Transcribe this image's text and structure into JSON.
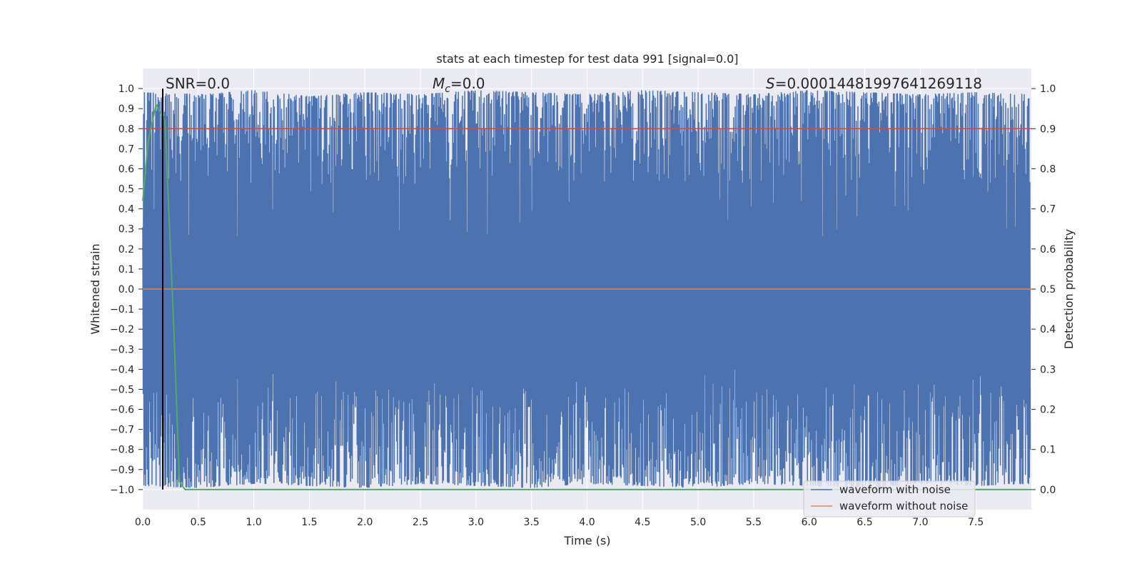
{
  "chart_data": {
    "type": "line",
    "title": "stats at each timestep for test data 991 [signal=0.0]",
    "xlabel": "Time (s)",
    "ylabel": "Whitened strain",
    "ylabel_right": "Detection probability",
    "xlim": [
      0.0,
      8.0
    ],
    "ylim": [
      -1.1,
      1.1
    ],
    "ylim_right": [
      -0.05,
      1.05
    ],
    "x_ticks": [
      0.0,
      0.5,
      1.0,
      1.5,
      2.0,
      2.5,
      3.0,
      3.5,
      4.0,
      4.5,
      5.0,
      5.5,
      6.0,
      6.5,
      7.0,
      7.5
    ],
    "x_tick_labels": [
      "0.0",
      "0.5",
      "1.0",
      "1.5",
      "2.0",
      "2.5",
      "3.0",
      "3.5",
      "4.0",
      "4.5",
      "5.0",
      "5.5",
      "6.0",
      "6.5",
      "7.0",
      "7.5"
    ],
    "y_ticks": [
      1.0,
      0.9,
      0.8,
      0.7,
      0.6,
      0.5,
      0.4,
      0.3,
      0.2,
      0.1,
      0.0,
      -0.1,
      -0.2,
      -0.3,
      -0.4,
      -0.5,
      -0.6,
      -0.7,
      -0.8,
      -0.9,
      -1.0
    ],
    "y_tick_labels": [
      "1.0",
      "0.9",
      "0.8",
      "0.7",
      "0.6",
      "0.5",
      "0.4",
      "0.3",
      "0.2",
      "0.1",
      "0.0",
      "−0.1",
      "−0.2",
      "−0.3",
      "−0.4",
      "−0.5",
      "−0.6",
      "−0.7",
      "−0.8",
      "−0.9",
      "−1.0"
    ],
    "y_right_ticks": [
      1.0,
      0.9,
      0.8,
      0.7,
      0.6,
      0.5,
      0.4,
      0.3,
      0.2,
      0.1,
      0.0
    ],
    "y_right_tick_labels": [
      "1.0",
      "0.9",
      "0.8",
      "0.7",
      "0.6",
      "0.5",
      "0.4",
      "0.3",
      "0.2",
      "0.1",
      "0.0"
    ],
    "grid": true,
    "legend_placement": "lower right",
    "annotations": {
      "snr": "SNR=0.0",
      "mc_symbol": "M",
      "mc_subscript": "c",
      "mc_value": "=0.0",
      "s_symbol": "S",
      "s_value": "=0.00014481997641269118"
    },
    "series": [
      {
        "name": "waveform with noise",
        "color": "#4c72b0",
        "axis": "left",
        "description_points": {
          "x": [
            0.0,
            0.5,
            1.0,
            1.5,
            2.0,
            2.5,
            3.0,
            3.5,
            4.0,
            4.5,
            5.0,
            5.5,
            6.0,
            6.5,
            7.0,
            7.5,
            8.0
          ],
          "y_upper": [
            0.98,
            0.97,
            0.99,
            0.96,
            0.98,
            0.97,
            0.99,
            0.98,
            0.97,
            0.99,
            0.98,
            0.97,
            0.99,
            0.98,
            0.97,
            0.98,
            0.97
          ],
          "y_lower": [
            -0.98,
            -0.99,
            -0.97,
            -0.98,
            -0.99,
            -0.97,
            -0.98,
            -0.99,
            -0.97,
            -0.98,
            -0.99,
            -0.97,
            -0.98,
            -0.99,
            -0.97,
            -0.98,
            -0.97
          ]
        }
      },
      {
        "name": "waveform without noise",
        "color": "#dd8452",
        "axis": "left",
        "x": [
          0.0,
          8.0
        ],
        "y": [
          0.0,
          0.0
        ]
      },
      {
        "color": "#c44e52",
        "axis": "right",
        "x": [
          0.0,
          8.0
        ],
        "y": [
          0.9,
          0.9
        ]
      },
      {
        "color": "#55a868",
        "axis": "right",
        "x": [
          0.0,
          0.05,
          0.12,
          0.2,
          0.28,
          0.33,
          0.38,
          0.5,
          8.0
        ],
        "y": [
          0.72,
          0.87,
          0.96,
          0.92,
          0.4,
          0.02,
          0.0,
          0.0,
          0.0
        ]
      }
    ],
    "vertical_line": {
      "x": 0.18,
      "color": "#000000"
    },
    "colors": {
      "axes_bg": "#eaeaf2",
      "grid": "#ffffff",
      "noise": "#4c72b0",
      "clean": "#dd8452",
      "threshold": "#c44e52",
      "probability": "#55a868"
    }
  }
}
